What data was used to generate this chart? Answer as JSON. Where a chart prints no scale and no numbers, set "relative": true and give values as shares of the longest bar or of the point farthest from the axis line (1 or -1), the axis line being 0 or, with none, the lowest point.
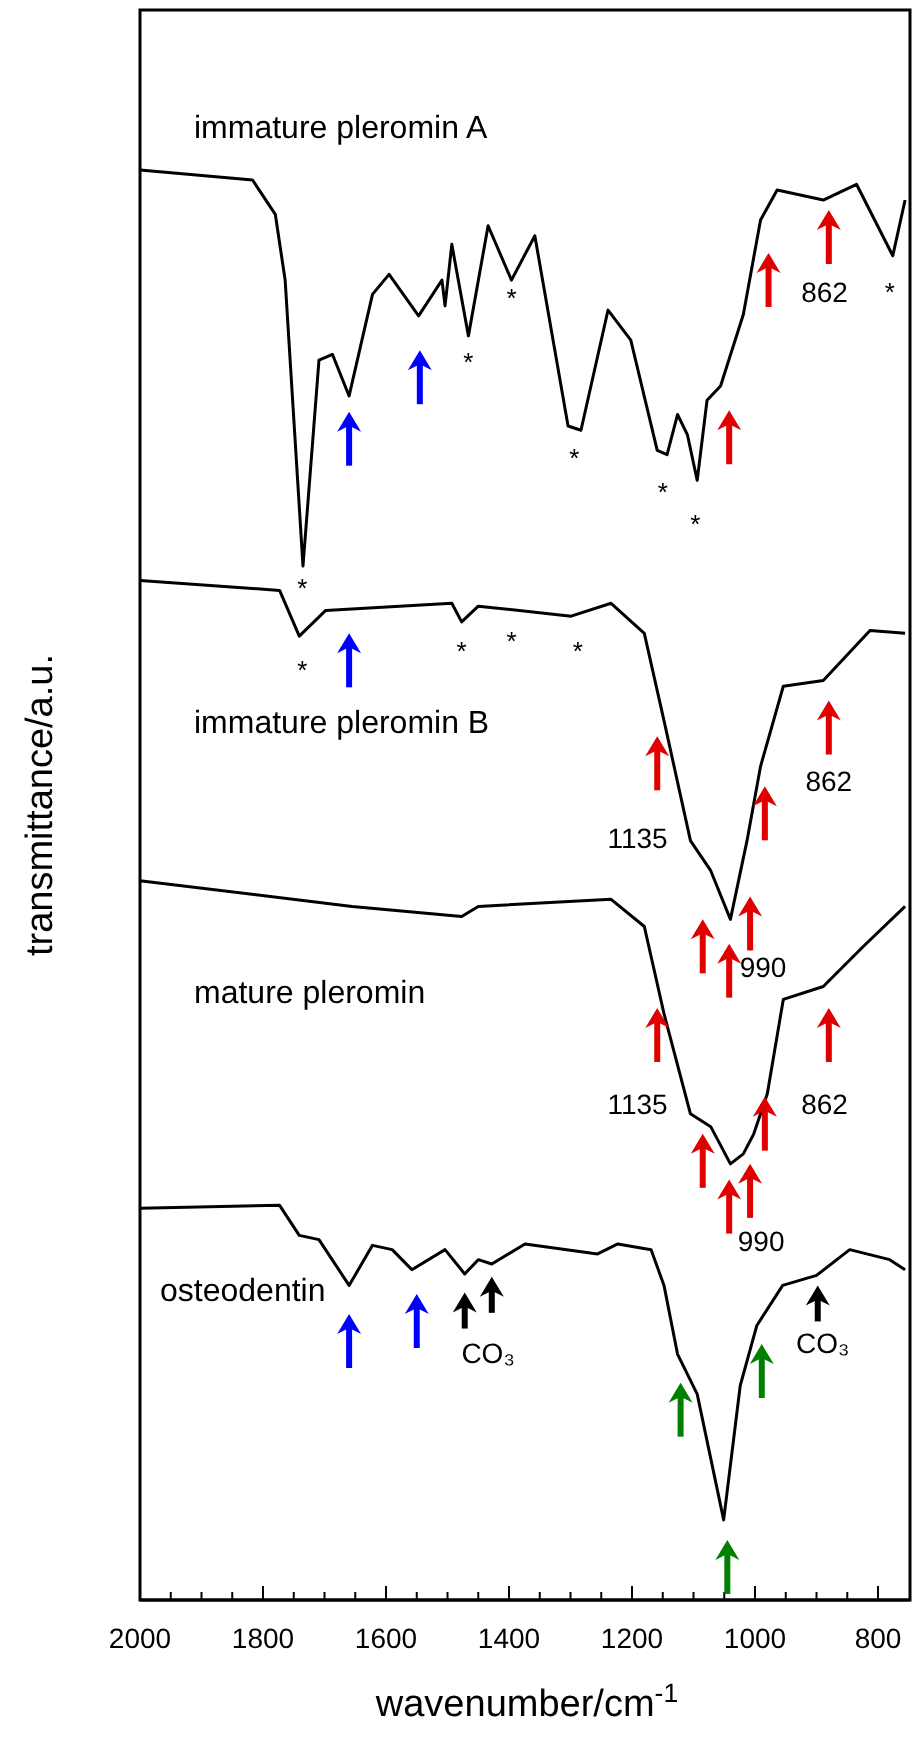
{
  "chart_data": {
    "type": "line",
    "relative": true,
    "xlabel": "wavenumber/cm$^{-1}$",
    "ylabel": "transmittance/a.u.",
    "xlim": [
      2000,
      748
    ],
    "xticks": [
      2000,
      {
        "value": 1950,
        "label": null
      },
      {
        "value": 1900,
        "label": null
      },
      {
        "value": 1850,
        "label": null
      },
      1800,
      {
        "value": 1750,
        "label": null
      },
      {
        "value": 1700,
        "label": null
      },
      {
        "value": 1650,
        "label": null
      },
      1600,
      {
        "value": 1550,
        "label": null
      },
      {
        "value": 1500,
        "label": null
      },
      {
        "value": 1450,
        "label": null
      },
      1400,
      {
        "value": 1350,
        "label": null
      },
      {
        "value": 1300,
        "label": null
      },
      {
        "value": 1250,
        "label": null
      },
      1200,
      {
        "value": 1150,
        "label": null
      },
      {
        "value": 1100,
        "label": null
      },
      {
        "value": 1050,
        "label": null
      },
      1000,
      {
        "value": 950,
        "label": null
      },
      {
        "value": 900,
        "label": null
      },
      {
        "value": 850,
        "label": null
      },
      800
    ],
    "grid": false,
    "legend": false,
    "marker": "none",
    "line_style": "solid",
    "series": [
      {
        "name": "immature pleromin A",
        "color": "#000000",
        "x": [
          2000,
          1817,
          1780,
          1764,
          1735,
          1709,
          1687,
          1660,
          1622,
          1595,
          1547,
          1509,
          1504,
          1493,
          1466,
          1434,
          1396,
          1358,
          1304,
          1283,
          1239,
          1202,
          1159,
          1143,
          1126,
          1110,
          1094,
          1078,
          1056,
          1019,
          991,
          964,
          889,
          835,
          776,
          756
        ],
        "values": [
          1.0,
          0.993,
          0.969,
          0.923,
          0.723,
          0.867,
          0.871,
          0.842,
          0.913,
          0.927,
          0.898,
          0.923,
          0.905,
          0.948,
          0.884,
          0.961,
          0.923,
          0.954,
          0.821,
          0.818,
          0.902,
          0.881,
          0.804,
          0.801,
          0.829,
          0.815,
          0.783,
          0.839,
          0.849,
          0.899,
          0.965,
          0.986,
          0.979,
          0.99,
          0.94,
          0.979
        ]
      },
      {
        "name": "immature pleromin B",
        "color": "#000000",
        "x": [
          2000,
          1773,
          1741,
          1698,
          1493,
          1477,
          1450,
          1299,
          1234,
          1180,
          1148,
          1105,
          1072,
          1040,
          1013,
          991,
          954,
          889,
          813,
          756
        ],
        "values": [
          0.713,
          0.706,
          0.674,
          0.692,
          0.697,
          0.684,
          0.695,
          0.688,
          0.697,
          0.676,
          0.615,
          0.531,
          0.51,
          0.476,
          0.531,
          0.583,
          0.639,
          0.643,
          0.678,
          0.676
        ]
      },
      {
        "name": "mature pleromin",
        "color": "#000000",
        "x": [
          2000,
          1655,
          1477,
          1450,
          1234,
          1180,
          1148,
          1105,
          1072,
          1040,
          1019,
          1002,
          980,
          954,
          889,
          824,
          756
        ],
        "values": [
          0.503,
          0.485,
          0.478,
          0.485,
          0.49,
          0.471,
          0.41,
          0.34,
          0.331,
          0.305,
          0.312,
          0.326,
          0.354,
          0.42,
          0.429,
          0.457,
          0.485
        ]
      },
      {
        "name": "osteodentin",
        "color": "#000000",
        "x": [
          2000,
          1773,
          1741,
          1709,
          1660,
          1622,
          1590,
          1558,
          1504,
          1472,
          1450,
          1428,
          1374,
          1256,
          1223,
          1169,
          1148,
          1126,
          1094,
          1051,
          1024,
          997,
          955,
          900,
          846,
          781,
          756
        ],
        "values": [
          0.274,
          0.276,
          0.255,
          0.252,
          0.22,
          0.248,
          0.245,
          0.231,
          0.245,
          0.228,
          0.238,
          0.235,
          0.249,
          0.242,
          0.249,
          0.245,
          0.22,
          0.172,
          0.144,
          0.056,
          0.15,
          0.192,
          0.22,
          0.227,
          0.245,
          0.238,
          0.231
        ]
      }
    ],
    "annotations": [
      "*",
      "*",
      "*",
      "*",
      "*",
      "*",
      "*",
      "862",
      "*",
      "*",
      "*",
      "*",
      "862",
      "1135",
      "990",
      "1135",
      "862",
      "990",
      "CO₃",
      "CO₃"
    ]
  }
}
